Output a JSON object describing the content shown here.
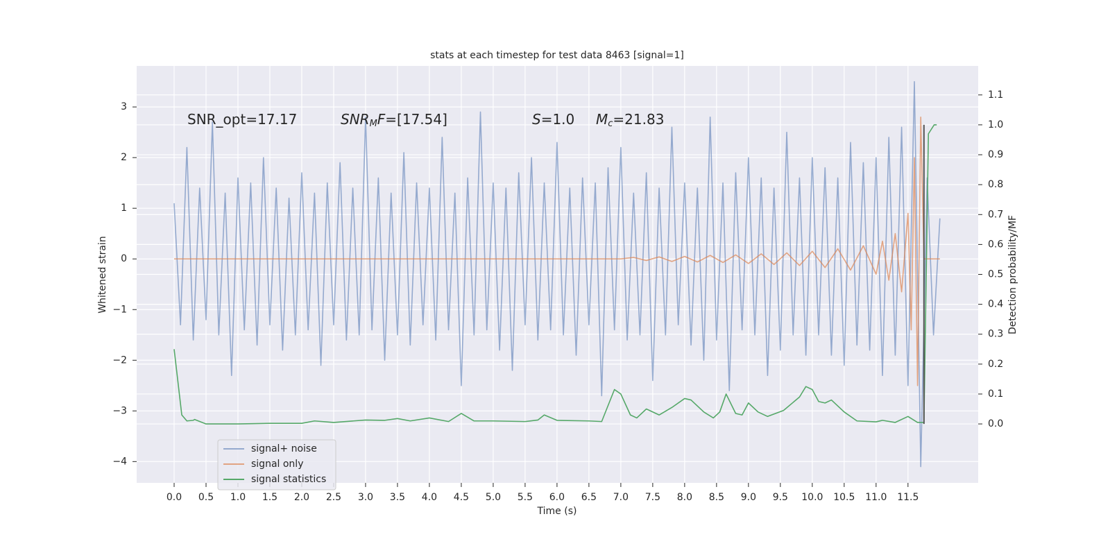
{
  "chart_data": {
    "type": "line",
    "title": "stats at each timestep for test data 8463 [signal=1]",
    "xlabel": "Time (s)",
    "ylabel": "Whitened strain",
    "y2label": "Detection probability/MF",
    "xlim": [
      -0.587,
      12.6
    ],
    "ylim": [
      -4.42,
      3.81
    ],
    "y2lim": [
      -0.197,
      1.197
    ],
    "xticks": [
      {
        "value": 0,
        "label": "0.0"
      },
      0.5,
      {
        "value": 1,
        "label": "1.0"
      },
      1.5,
      {
        "value": 2,
        "label": "2.0"
      },
      2.5,
      {
        "value": 3,
        "label": "3.0"
      },
      3.5,
      {
        "value": 4,
        "label": "4.0"
      },
      4.5,
      {
        "value": 5,
        "label": "5.0"
      },
      5.5,
      {
        "value": 6,
        "label": "6.0"
      },
      6.5,
      {
        "value": 7,
        "label": "7.0"
      },
      7.5,
      {
        "value": 8,
        "label": "8.0"
      },
      8.5,
      {
        "value": 9,
        "label": "9.0"
      },
      9.5,
      {
        "value": 10,
        "label": "10.0"
      },
      10.5,
      {
        "value": 11,
        "label": "11.0"
      },
      11.5
    ],
    "yticks": [
      {
        "value": -4,
        "label": "−4"
      },
      {
        "value": -3,
        "label": "−3"
      },
      {
        "value": -2,
        "label": "−2"
      },
      {
        "value": -1,
        "label": "−1"
      },
      0,
      1,
      2,
      3
    ],
    "y2ticks": [
      {
        "value": 0,
        "label": "0.0"
      },
      0.1,
      0.2,
      0.3,
      0.4,
      0.5,
      0.6,
      0.7,
      0.8,
      0.9,
      {
        "value": 1,
        "label": "1.0"
      },
      1.1
    ],
    "grid": true,
    "legend": "lower left",
    "annotations": [
      [
        "SNR_opt=17.17"
      ],
      [
        "SNR",
        "M",
        "F",
        "=[17.54]"
      ],
      [
        "S",
        "=1.0"
      ],
      [
        "M",
        "c",
        "=21.83"
      ]
    ],
    "vline": {
      "x": 11.75,
      "ymin": 0,
      "ymax": 1,
      "axis": "y2",
      "color": "#555555"
    },
    "series": [
      {
        "name": "signal+ noise",
        "color": "#4c72b0",
        "x": [
          0,
          0.1,
          0.2,
          0.3,
          0.4,
          0.5,
          0.6,
          0.7,
          0.8,
          0.9,
          1,
          1.1,
          1.2,
          1.3,
          1.4,
          1.5,
          1.6,
          1.7,
          1.8,
          1.9,
          2,
          2.1,
          2.2,
          2.3,
          2.4,
          2.5,
          2.6,
          2.7,
          2.8,
          2.9,
          3,
          3.1,
          3.2,
          3.3,
          3.4,
          3.5,
          3.6,
          3.7,
          3.8,
          3.9,
          4,
          4.1,
          4.2,
          4.3,
          4.4,
          4.5,
          4.6,
          4.7,
          4.8,
          4.9,
          5,
          5.1,
          5.2,
          5.3,
          5.4,
          5.5,
          5.6,
          5.7,
          5.8,
          5.9,
          6,
          6.1,
          6.2,
          6.3,
          6.4,
          6.5,
          6.6,
          6.7,
          6.8,
          6.9,
          7,
          7.1,
          7.2,
          7.3,
          7.4,
          7.5,
          7.6,
          7.7,
          7.8,
          7.9,
          8,
          8.1,
          8.2,
          8.3,
          8.4,
          8.5,
          8.6,
          8.7,
          8.8,
          8.9,
          9,
          9.1,
          9.2,
          9.3,
          9.4,
          9.5,
          9.6,
          9.7,
          9.8,
          9.9,
          10,
          10.1,
          10.2,
          10.3,
          10.4,
          10.5,
          10.6,
          10.7,
          10.8,
          10.9,
          11,
          11.1,
          11.2,
          11.3,
          11.4,
          11.5,
          11.6,
          11.7,
          11.8,
          11.9,
          12
        ],
        "values": [
          1.1,
          -1.3,
          2.2,
          -1.6,
          1.4,
          -1.2,
          2.7,
          -1.5,
          1.3,
          -2.3,
          1.6,
          -1.4,
          1.5,
          -1.7,
          2.0,
          -1.3,
          1.4,
          -1.8,
          1.2,
          -1.5,
          1.7,
          -1.4,
          1.3,
          -2.1,
          1.5,
          -1.3,
          1.9,
          -1.6,
          1.4,
          -1.5,
          2.8,
          -1.4,
          1.6,
          -2.0,
          1.3,
          -1.5,
          2.1,
          -1.7,
          1.5,
          -1.3,
          1.4,
          -1.6,
          2.4,
          -1.4,
          1.3,
          -2.5,
          1.6,
          -1.5,
          2.9,
          -1.4,
          1.5,
          -1.8,
          1.4,
          -2.2,
          1.7,
          -1.3,
          2.0,
          -1.6,
          1.5,
          -1.4,
          2.3,
          -1.5,
          1.4,
          -1.9,
          1.6,
          -1.3,
          1.5,
          -2.7,
          1.8,
          -1.4,
          2.2,
          -1.6,
          1.3,
          -1.5,
          1.7,
          -2.4,
          1.4,
          -1.5,
          2.6,
          -1.3,
          1.5,
          -1.7,
          1.4,
          -2.0,
          2.8,
          -1.6,
          1.5,
          -2.6,
          1.7,
          -1.4,
          2.0,
          -1.5,
          1.6,
          -2.3,
          1.4,
          -1.8,
          2.5,
          -1.5,
          1.6,
          -1.9,
          2.0,
          -1.5,
          1.8,
          -1.9,
          1.6,
          -2.1,
          2.3,
          -1.7,
          1.9,
          -1.8,
          2.0,
          -2.3,
          2.4,
          -1.9,
          2.6,
          -2.5,
          3.5,
          -4.1,
          1.6,
          -1.5,
          0.8
        ]
      },
      {
        "name": "signal only",
        "color": "#dd8452",
        "x": [
          0,
          7.0,
          7.2,
          7.4,
          7.6,
          7.8,
          8.0,
          8.2,
          8.4,
          8.6,
          8.8,
          9.0,
          9.2,
          9.4,
          9.6,
          9.8,
          10.0,
          10.2,
          10.4,
          10.6,
          10.8,
          11.0,
          11.1,
          11.2,
          11.3,
          11.4,
          11.5,
          11.55,
          11.6,
          11.65,
          11.7,
          11.75,
          12.0
        ],
        "values": [
          0,
          0,
          0.03,
          -0.03,
          0.04,
          -0.05,
          0.05,
          -0.06,
          0.07,
          -0.07,
          0.08,
          -0.09,
          0.1,
          -0.11,
          0.12,
          -0.13,
          0.15,
          -0.17,
          0.2,
          -0.22,
          0.26,
          -0.3,
          0.35,
          -0.42,
          0.5,
          -0.65,
          0.9,
          -1.4,
          2.0,
          -2.5,
          2.8,
          0,
          0
        ]
      },
      {
        "name": "signal statistics",
        "color": "#55a868",
        "axis": "y2",
        "x": [
          0,
          0.12,
          0.2,
          0.3,
          0.32,
          0.5,
          1.0,
          1.5,
          2.0,
          2.2,
          2.5,
          3.0,
          3.3,
          3.5,
          3.7,
          4.0,
          4.3,
          4.5,
          4.7,
          5.0,
          5.5,
          5.7,
          5.8,
          6.0,
          6.5,
          6.7,
          6.9,
          7.0,
          7.15,
          7.25,
          7.4,
          7.6,
          7.8,
          8.0,
          8.1,
          8.3,
          8.45,
          8.55,
          8.65,
          8.8,
          8.9,
          9.0,
          9.15,
          9.3,
          9.55,
          9.8,
          9.9,
          10.0,
          10.1,
          10.2,
          10.3,
          10.5,
          10.7,
          11.0,
          11.1,
          11.3,
          11.5,
          11.65,
          11.75,
          11.82,
          11.91,
          11.95
        ],
        "values": [
          0.25,
          0.03,
          0.01,
          0.012,
          0.015,
          0.0,
          0.0,
          0.002,
          0.002,
          0.01,
          0.005,
          0.013,
          0.012,
          0.018,
          0.01,
          0.02,
          0.008,
          0.035,
          0.01,
          0.01,
          0.008,
          0.013,
          0.03,
          0.012,
          0.01,
          0.008,
          0.115,
          0.1,
          0.03,
          0.02,
          0.05,
          0.03,
          0.055,
          0.085,
          0.08,
          0.04,
          0.02,
          0.04,
          0.1,
          0.035,
          0.03,
          0.07,
          0.04,
          0.025,
          0.045,
          0.09,
          0.125,
          0.115,
          0.075,
          0.07,
          0.08,
          0.04,
          0.01,
          0.007,
          0.012,
          0.005,
          0.025,
          0.005,
          0.005,
          0.97,
          1.0,
          1.0
        ]
      }
    ]
  }
}
